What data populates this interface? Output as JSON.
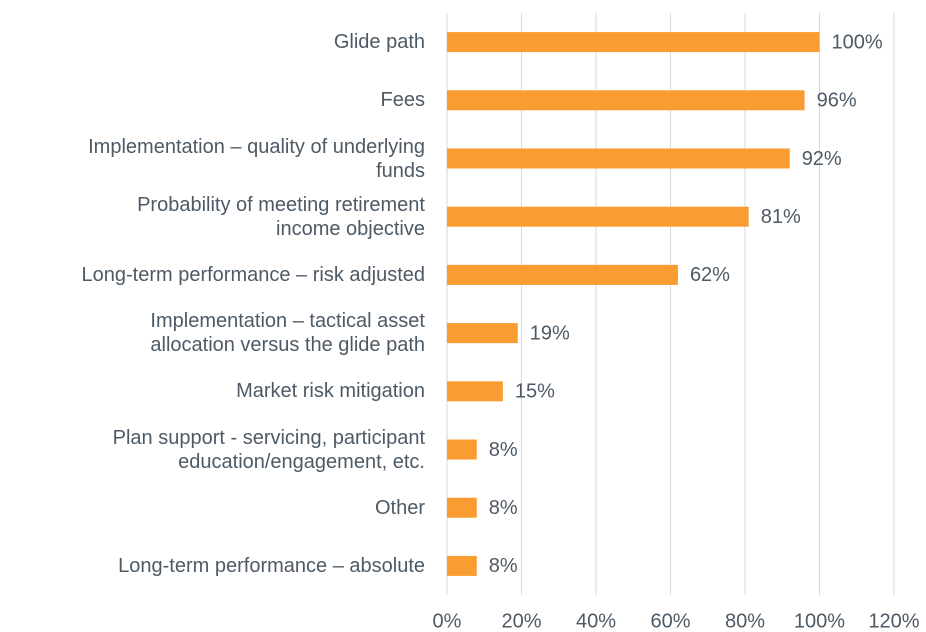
{
  "chart_data": {
    "type": "barh",
    "categories": [
      "Glide path",
      "Fees",
      "Implementation – quality of underlying\nfunds",
      "Probability of meeting retirement\nincome objective",
      "Long-term performance – risk adjusted",
      "Implementation – tactical asset\nallocation versus the glide path",
      "Market risk mitigation",
      "Plan support - servicing, participant\neducation/engagement, etc.",
      "Other",
      "Long-term performance – absolute"
    ],
    "values": [
      100,
      96,
      92,
      81,
      62,
      19,
      15,
      8,
      8,
      8
    ],
    "value_labels": [
      "100%",
      "96%",
      "92%",
      "81%",
      "62%",
      "19%",
      "15%",
      "8%",
      "8%",
      "8%"
    ],
    "color": "#f99d33",
    "xlim": [
      0,
      120
    ],
    "xticks": [
      {
        "value": 0,
        "label": "0%"
      },
      {
        "value": 20,
        "label": "20%"
      },
      {
        "value": 40,
        "label": "40%"
      },
      {
        "value": 60,
        "label": "60%"
      },
      {
        "value": 80,
        "label": "80%"
      },
      {
        "value": 100,
        "label": "100%"
      },
      {
        "value": 120,
        "label": "120%"
      }
    ],
    "grid": true
  }
}
